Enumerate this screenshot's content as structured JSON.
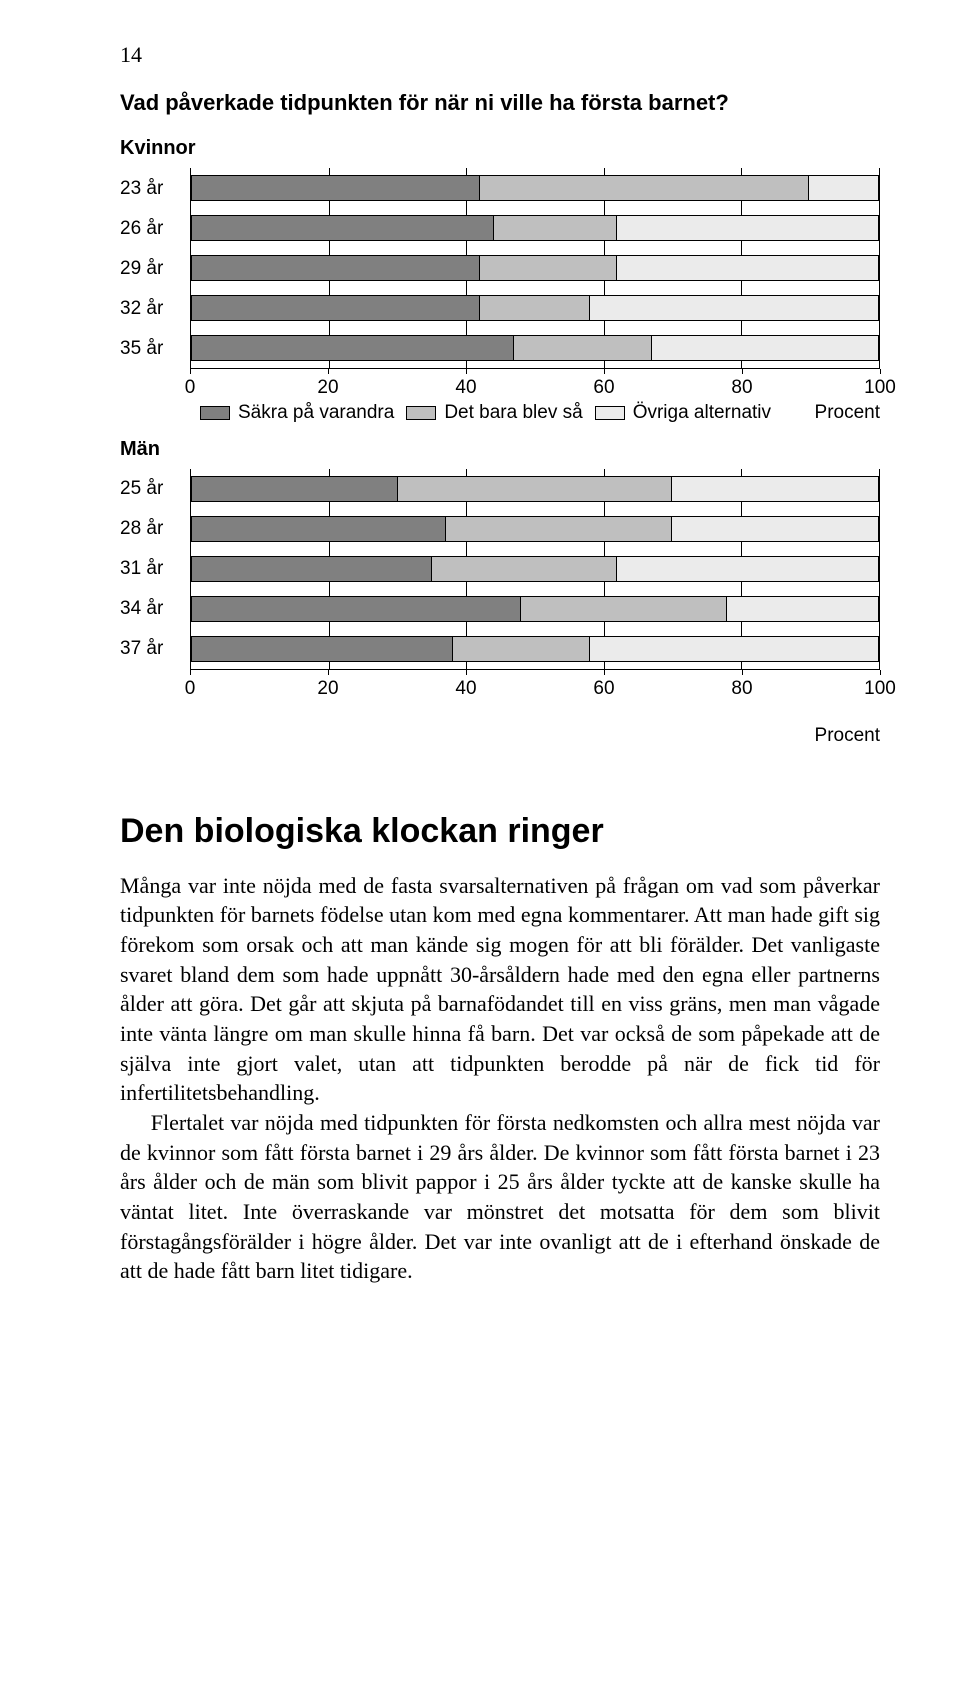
{
  "page_number": "14",
  "chart_title": "Vad påverkade tidpunkten för när ni ville ha första barnet?",
  "colors": {
    "seg1": "#808080",
    "seg2": "#bfbfbf",
    "seg3": "#ebebeb",
    "axis": "#000000"
  },
  "chart_kvinnor": {
    "group_label": "Kvinnor",
    "type": "stacked-bar-horizontal",
    "xlim": [
      0,
      100
    ],
    "xticks": [
      0,
      20,
      40,
      60,
      80,
      100
    ],
    "axis_caption": "Procent",
    "legend": [
      {
        "label": "Säkra på varandra",
        "color": "#808080"
      },
      {
        "label": "Det bara blev så",
        "color": "#bfbfbf"
      },
      {
        "label": "Övriga alternativ",
        "color": "#ebebeb"
      }
    ],
    "rows": [
      {
        "label": "23 år",
        "values": [
          42,
          48,
          10
        ]
      },
      {
        "label": "26 år",
        "values": [
          44,
          18,
          38
        ]
      },
      {
        "label": "29 år",
        "values": [
          42,
          20,
          38
        ]
      },
      {
        "label": "32 år",
        "values": [
          42,
          16,
          42
        ]
      },
      {
        "label": "35 år",
        "values": [
          47,
          20,
          33
        ]
      }
    ]
  },
  "chart_man": {
    "group_label": "Män",
    "type": "stacked-bar-horizontal",
    "xlim": [
      0,
      100
    ],
    "xticks": [
      0,
      20,
      40,
      60,
      80,
      100
    ],
    "axis_caption": "Procent",
    "rows": [
      {
        "label": "25 år",
        "values": [
          30,
          40,
          30
        ]
      },
      {
        "label": "28 år",
        "values": [
          37,
          33,
          30
        ]
      },
      {
        "label": "31 år",
        "values": [
          35,
          27,
          38
        ]
      },
      {
        "label": "34 år",
        "values": [
          48,
          30,
          22
        ]
      },
      {
        "label": "37 år",
        "values": [
          38,
          20,
          42
        ]
      }
    ]
  },
  "section_heading": "Den biologiska klockan ringer",
  "paragraphs": [
    "Många var inte nöjda med de fasta svarsalternativen på frågan om vad som påverkar tidpunkten för barnets födelse utan kom med egna kommentarer. Att man hade gift sig förekom som orsak och att man kände sig mogen för att bli förälder. Det vanligaste svaret bland dem som hade uppnått 30-årsåldern hade med den egna eller partnerns ålder att göra. Det går att skjuta på barnafödandet till en viss gräns, men man vågade inte vänta längre om man skulle hinna få barn. Det var också de som påpekade att de själva inte gjort valet, utan att tidpunkten berodde på när de fick tid för infertilitetsbehandling.",
    "Flertalet var nöjda med tidpunkten för första nedkomsten och allra mest nöjda var de kvinnor som fått första barnet i 29 års ålder. De kvinnor som fått första barnet i 23 års ålder och de män som blivit pappor i 25 års ålder tyckte att de kanske skulle ha väntat litet. Inte överraskande var mönstret det motsatta för dem som blivit förstagångsförälder i högre ålder. Det var inte ovanligt att de i efterhand önskade de att de hade fått barn litet tidigare."
  ]
}
